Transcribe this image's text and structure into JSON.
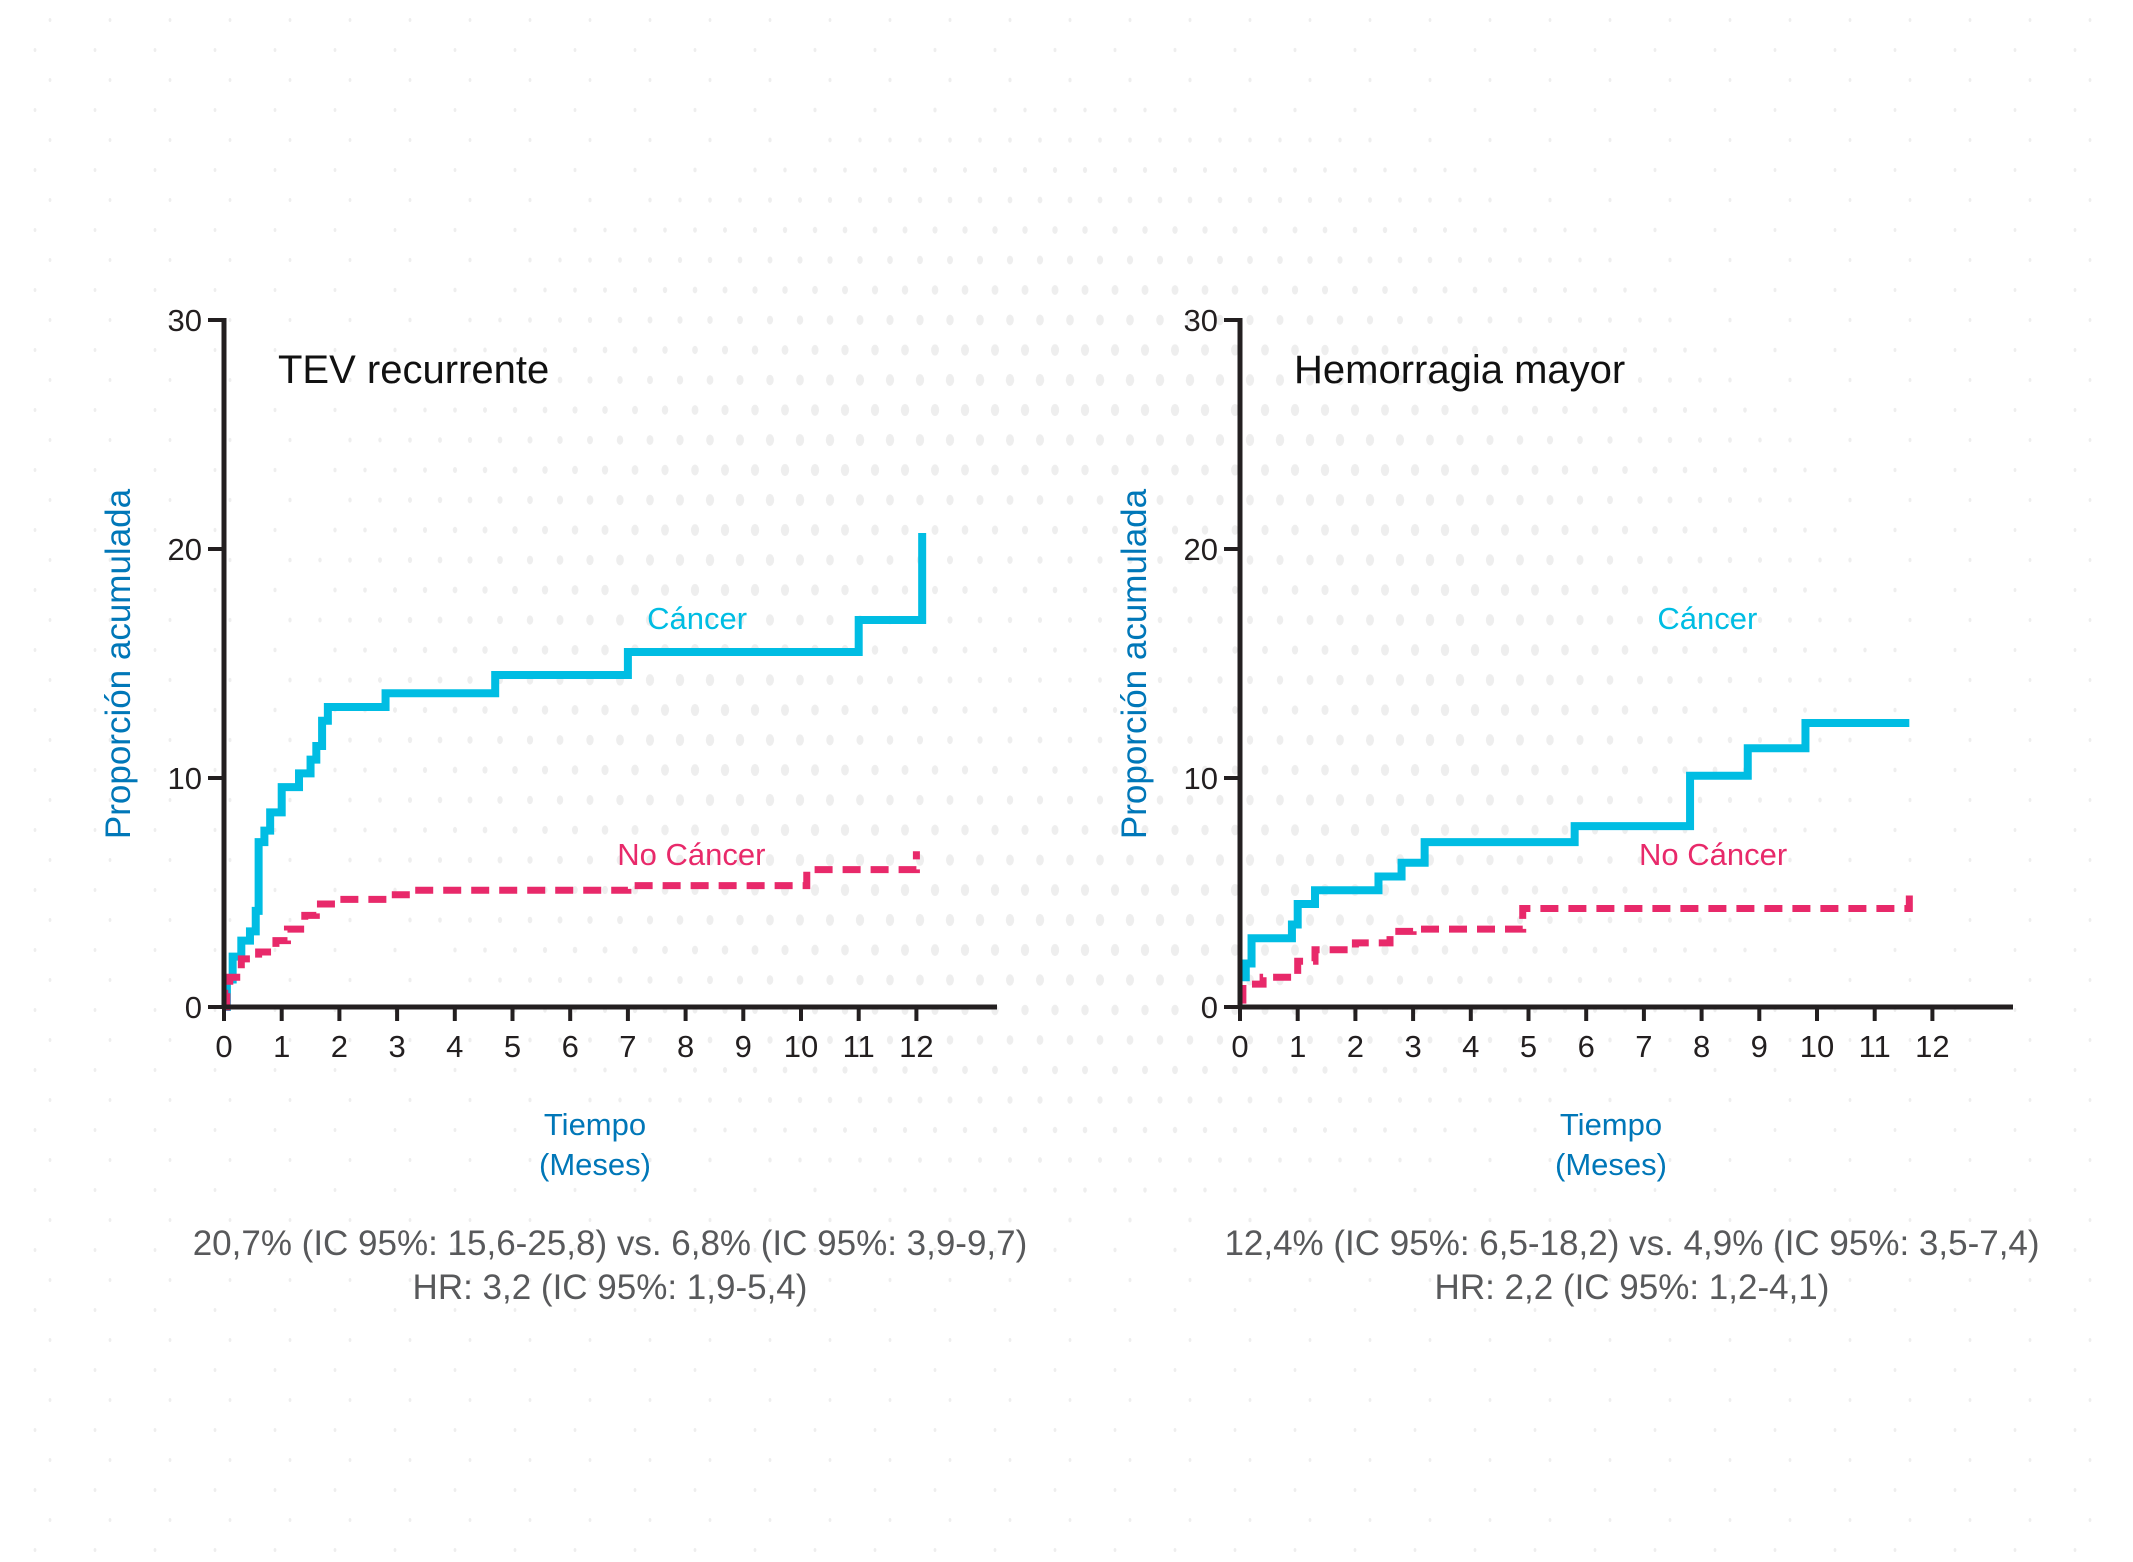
{
  "colors": {
    "cancer": "#00BDE3",
    "no_cancer": "#E8296A",
    "axis_label": "#0077B8",
    "axis": "#231F20",
    "stats_text": "#58595B",
    "title": "#111111"
  },
  "chart_data": [
    {
      "type": "line",
      "step": true,
      "title": "TEV recurrente",
      "xlabel": "Tiempo",
      "xlabel_sub": "(Meses)",
      "ylabel": "Proporción acumulada",
      "xlim": [
        0,
        12
      ],
      "ylim": [
        0,
        30
      ],
      "xticks": [
        "0",
        "1",
        "2",
        "3",
        "4",
        "5",
        "6",
        "7",
        "8",
        "9",
        "10",
        "11",
        "12"
      ],
      "yticks": [
        "0",
        "10",
        "20",
        "30"
      ],
      "grid": false,
      "series": [
        {
          "name": "Cáncer",
          "style": "solid",
          "x": [
            0,
            0.05,
            0.15,
            0.3,
            0.45,
            0.55,
            0.6,
            0.7,
            0.8,
            1.0,
            1.3,
            1.5,
            1.6,
            1.7,
            1.8,
            2.8,
            4.7,
            7.0,
            11.0,
            12.1
          ],
          "y": [
            0,
            1.2,
            2.2,
            2.9,
            3.3,
            4.2,
            7.2,
            7.7,
            8.5,
            9.6,
            10.2,
            10.8,
            11.4,
            12.5,
            13.1,
            13.7,
            14.5,
            15.5,
            16.9,
            20.7
          ],
          "x_end": 12.1
        },
        {
          "name": "No Cáncer",
          "style": "dashed",
          "x": [
            0,
            0.05,
            0.1,
            0.3,
            0.6,
            0.9,
            1.1,
            1.4,
            1.6,
            2.0,
            2.9,
            3.3,
            7.0,
            10.1,
            12.0
          ],
          "y": [
            0,
            0.6,
            1.3,
            2.1,
            2.4,
            2.9,
            3.4,
            4.0,
            4.5,
            4.7,
            4.9,
            5.1,
            5.3,
            6.0,
            6.8
          ],
          "x_end": 12.0
        }
      ],
      "annotations": [
        {
          "text": "Cáncer",
          "series": "Cáncer",
          "x": 8.2,
          "y": 16.5
        },
        {
          "text": "No Cáncer",
          "series": "No Cáncer",
          "x": 8.1,
          "y": 6.2
        }
      ],
      "stats_line1": "20,7% (IC 95%: 15,6-25,8) vs. 6,8% (IC 95%: 3,9-9,7)",
      "stats_line2": "HR: 3,2 (IC 95%: 1,9-5,4)"
    },
    {
      "type": "line",
      "step": true,
      "title": "Hemorragia mayor",
      "xlabel": "Tiempo",
      "xlabel_sub": "(Meses)",
      "ylabel": "Proporción acumulada",
      "xlim": [
        0,
        12
      ],
      "ylim": [
        0,
        30
      ],
      "xticks": [
        "0",
        "1",
        "2",
        "3",
        "4",
        "5",
        "6",
        "7",
        "8",
        "9",
        "10",
        "11",
        "12"
      ],
      "yticks": [
        "0",
        "10",
        "20",
        "30"
      ],
      "grid": false,
      "series": [
        {
          "name": "Cáncer",
          "style": "solid",
          "x": [
            0,
            0.1,
            0.2,
            0.9,
            1.0,
            1.3,
            2.4,
            2.8,
            3.2,
            5.8,
            7.8,
            8.8,
            9.8
          ],
          "y": [
            1.3,
            1.9,
            3.0,
            3.6,
            4.5,
            5.1,
            5.7,
            6.3,
            7.2,
            7.9,
            10.1,
            11.3,
            12.4
          ],
          "x_end": 11.6
        },
        {
          "name": "No Cáncer",
          "style": "dashed",
          "x": [
            0,
            0.05,
            0.4,
            1.0,
            1.3,
            2.0,
            2.6,
            3.0,
            4.9,
            11.6
          ],
          "y": [
            0.3,
            1.0,
            1.3,
            2.0,
            2.5,
            2.8,
            3.3,
            3.4,
            4.3,
            4.9
          ],
          "x_end": 11.6
        }
      ],
      "annotations": [
        {
          "text": "Cáncer",
          "series": "Cáncer",
          "x": 8.1,
          "y": 16.5
        },
        {
          "text": "No Cáncer",
          "series": "No Cáncer",
          "x": 8.2,
          "y": 6.2
        }
      ],
      "stats_line1": "12,4% (IC 95%: 6,5-18,2) vs. 4,9% (IC 95%: 3,5-7,4)",
      "stats_line2": "HR: 2,2 (IC 95%: 1,2-4,1)"
    }
  ]
}
